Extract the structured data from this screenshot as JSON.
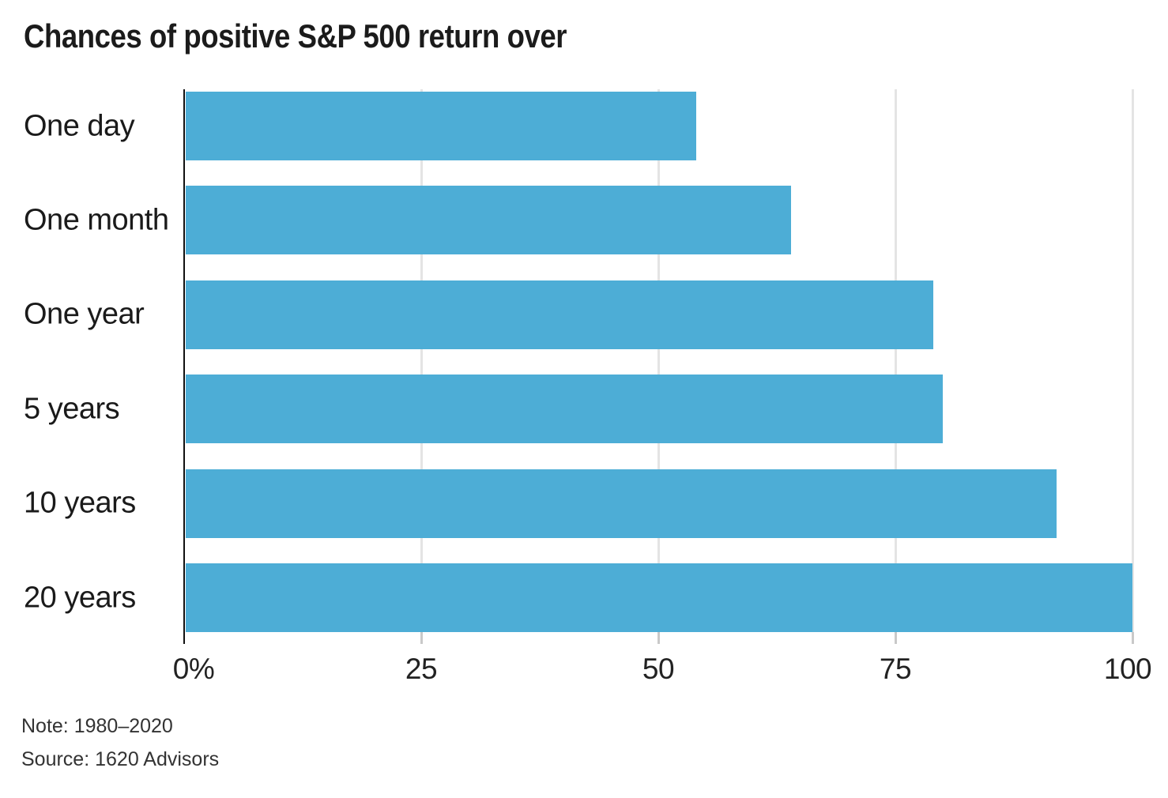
{
  "chart": {
    "title": "Chances of positive S&P 500 return over",
    "note": "Note: 1980–2020",
    "source": "Source: 1620 Advisors"
  },
  "chart_data": {
    "type": "bar",
    "orientation": "horizontal",
    "title": "Chances of positive S&P 500 return over",
    "categories": [
      "One day",
      "One month",
      "One year",
      "5 years",
      "10 years",
      "20 years"
    ],
    "values": [
      54,
      64,
      79,
      80,
      92,
      100
    ],
    "unit": "%",
    "xlabel": "",
    "ylabel": "",
    "xlim": [
      0,
      100
    ],
    "xticks": [
      0,
      25,
      50,
      75,
      100
    ],
    "xtick_labels": [
      "0%",
      "25",
      "50",
      "75",
      "100"
    ],
    "grid": true,
    "legend": false,
    "note": "Note: 1980–2020",
    "source": "Source: 1620 Advisors",
    "colors": {
      "bar": "#4DADD6",
      "gridline": "#e4e4e4",
      "tick": "#c9c9c9",
      "axis": "#111111",
      "text": "#1a1a1a",
      "note_text": "#333333",
      "background": "#ffffff"
    }
  }
}
